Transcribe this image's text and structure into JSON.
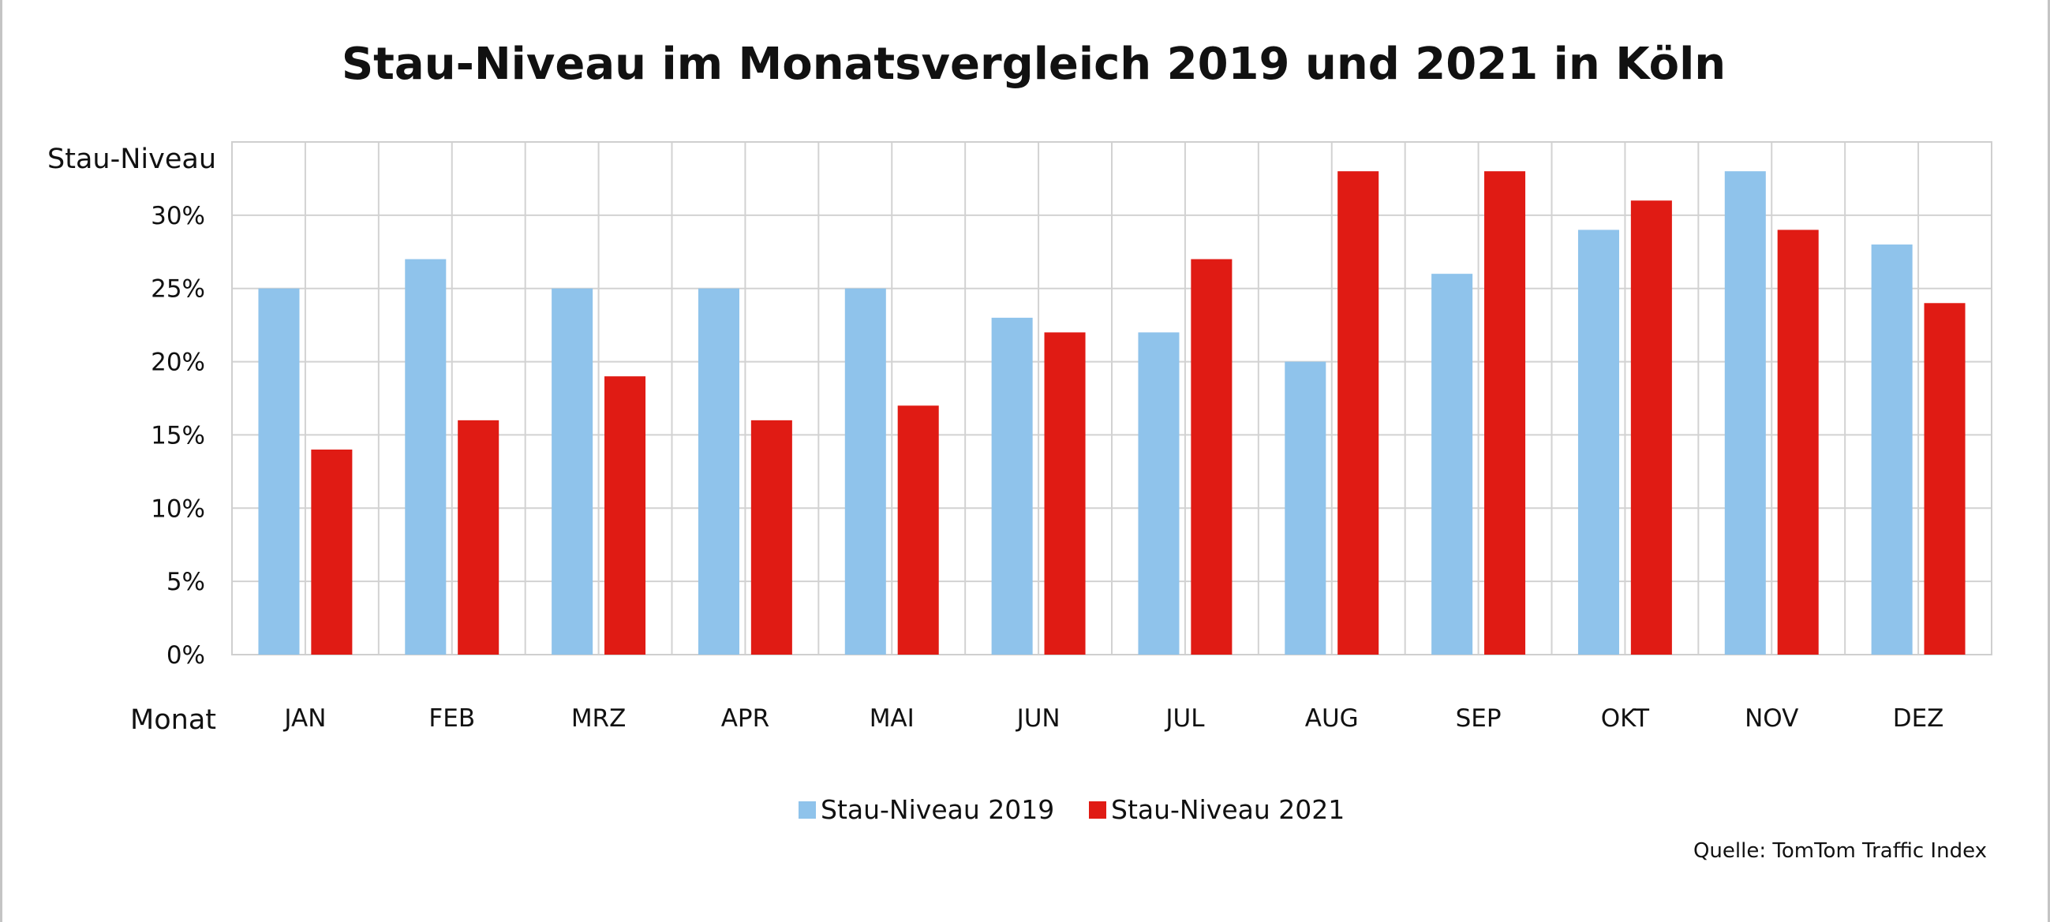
{
  "chart_data": {
    "type": "bar",
    "title": "Stau-Niveau im Monatsvergleich 2019 und 2021 in Köln",
    "ylabel": "Stau-Niveau",
    "xlabel": "Monat",
    "categories": [
      "JAN",
      "FEB",
      "MRZ",
      "APR",
      "MAI",
      "JUN",
      "JUL",
      "AUG",
      "SEP",
      "OKT",
      "NOV",
      "DEZ"
    ],
    "series": [
      {
        "name": "Stau-Niveau 2019",
        "color": "#8fc3eb",
        "values": [
          25,
          27,
          25,
          25,
          25,
          23,
          22,
          20,
          26,
          29,
          33,
          28
        ]
      },
      {
        "name": "Stau-Niveau 2021",
        "color": "#e01b14",
        "values": [
          14,
          16,
          19,
          16,
          17,
          22,
          27,
          33,
          33,
          31,
          29,
          24
        ]
      }
    ],
    "ylim": [
      0,
      35
    ],
    "yticks": [
      {
        "value": 0,
        "label": "0%"
      },
      {
        "value": 5,
        "label": "5%"
      },
      {
        "value": 10,
        "label": "10%"
      },
      {
        "value": 15,
        "label": "15%"
      },
      {
        "value": 20,
        "label": "20%"
      },
      {
        "value": 25,
        "label": "25%"
      },
      {
        "value": 30,
        "label": "30%"
      }
    ],
    "grid": true,
    "legend_position": "bottom-center",
    "source": "Quelle: TomTom Traffic Index"
  }
}
